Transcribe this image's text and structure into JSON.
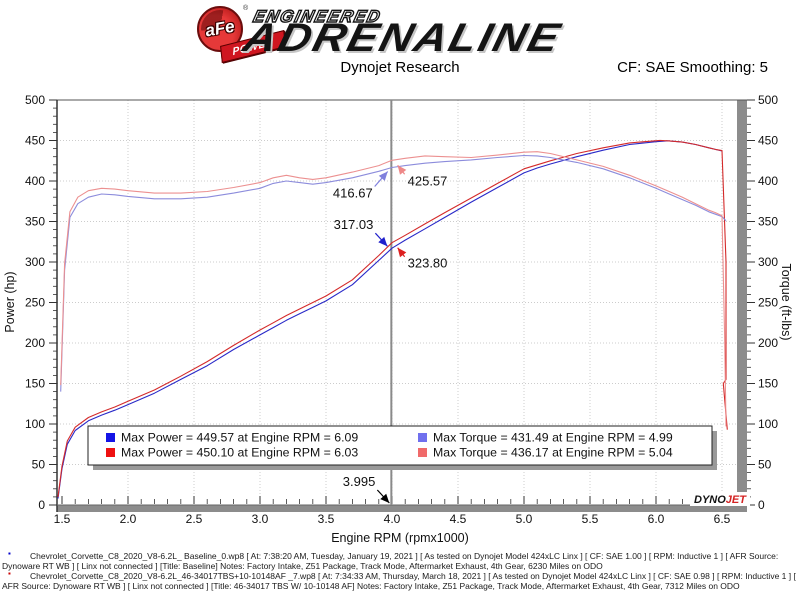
{
  "header": {
    "logo": {
      "afe": "aFe",
      "power": "POWER",
      "registered": "®",
      "engineered": "ENGINEERED",
      "adrenaline": "ADRENALINE"
    },
    "title": "Dynojet Research",
    "smoothing": "CF: SAE Smoothing: 5"
  },
  "chart_data": {
    "type": "line",
    "title": "Dynojet Research",
    "xlabel": "Engine RPM (rpmx1000)",
    "ylabel_left": "Power (hp)",
    "ylabel_right": "Torque (ft-lbs)",
    "xlim": [
      1.45,
      6.65
    ],
    "ylim": [
      0,
      500
    ],
    "x_major_step": 0.5,
    "x_minor_step": 0.1,
    "y_major_step": 50,
    "y_minor_step": 10,
    "grid": "dotted",
    "cursor_rpm": 3.995,
    "series": [
      {
        "name": "Power Baseline",
        "axis": "left",
        "color": "#2929c8",
        "points": [
          [
            1.47,
            8
          ],
          [
            1.5,
            45
          ],
          [
            1.54,
            75
          ],
          [
            1.6,
            92
          ],
          [
            1.7,
            104
          ],
          [
            1.8,
            111
          ],
          [
            1.9,
            117
          ],
          [
            2.0,
            124
          ],
          [
            2.2,
            138
          ],
          [
            2.4,
            155
          ],
          [
            2.6,
            172
          ],
          [
            2.8,
            192
          ],
          [
            3.0,
            210
          ],
          [
            3.1,
            219
          ],
          [
            3.2,
            228
          ],
          [
            3.3,
            236
          ],
          [
            3.4,
            244
          ],
          [
            3.5,
            252
          ],
          [
            3.7,
            272
          ],
          [
            3.9,
            302
          ],
          [
            4.0,
            317
          ],
          [
            4.1,
            327
          ],
          [
            4.25,
            341
          ],
          [
            4.4,
            355
          ],
          [
            4.6,
            374
          ],
          [
            4.8,
            392
          ],
          [
            5.0,
            410
          ],
          [
            5.1,
            416
          ],
          [
            5.2,
            421
          ],
          [
            5.4,
            430
          ],
          [
            5.6,
            438
          ],
          [
            5.8,
            445
          ],
          [
            6.0,
            448.5
          ],
          [
            6.09,
            449.6
          ],
          [
            6.2,
            448
          ],
          [
            6.3,
            445
          ],
          [
            6.4,
            441
          ],
          [
            6.45,
            439
          ],
          [
            6.5,
            437
          ]
        ]
      },
      {
        "name": "Power 46-34017 TBS W/ 10-10148 AF",
        "axis": "left",
        "color": "#d42a2a",
        "points": [
          [
            1.47,
            10
          ],
          [
            1.5,
            48
          ],
          [
            1.54,
            79
          ],
          [
            1.6,
            96
          ],
          [
            1.7,
            108
          ],
          [
            1.8,
            115
          ],
          [
            1.9,
            121
          ],
          [
            2.0,
            128
          ],
          [
            2.2,
            142
          ],
          [
            2.4,
            159
          ],
          [
            2.6,
            177
          ],
          [
            2.8,
            197
          ],
          [
            3.0,
            216
          ],
          [
            3.1,
            225
          ],
          [
            3.2,
            234
          ],
          [
            3.3,
            242
          ],
          [
            3.4,
            250
          ],
          [
            3.5,
            258
          ],
          [
            3.7,
            278
          ],
          [
            3.9,
            308
          ],
          [
            4.0,
            323.8
          ],
          [
            4.1,
            333
          ],
          [
            4.25,
            347
          ],
          [
            4.4,
            361
          ],
          [
            4.6,
            379
          ],
          [
            4.8,
            397
          ],
          [
            5.0,
            415
          ],
          [
            5.1,
            420
          ],
          [
            5.2,
            425
          ],
          [
            5.4,
            434
          ],
          [
            5.6,
            441
          ],
          [
            5.8,
            447
          ],
          [
            6.03,
            450.1
          ],
          [
            6.1,
            449.5
          ],
          [
            6.2,
            448
          ],
          [
            6.3,
            445
          ],
          [
            6.4,
            441
          ],
          [
            6.45,
            439
          ],
          [
            6.5,
            437.5
          ],
          [
            6.53,
            300
          ],
          [
            6.53,
            155
          ],
          [
            6.51,
            150
          ],
          [
            6.54,
            93
          ]
        ]
      },
      {
        "name": "Torque Baseline",
        "axis": "right",
        "color": "#8c8cdc",
        "points": [
          [
            1.49,
            140
          ],
          [
            1.52,
            290
          ],
          [
            1.56,
            355
          ],
          [
            1.62,
            372
          ],
          [
            1.7,
            380
          ],
          [
            1.8,
            384
          ],
          [
            1.9,
            383
          ],
          [
            2.0,
            381
          ],
          [
            2.2,
            378
          ],
          [
            2.4,
            378
          ],
          [
            2.6,
            380
          ],
          [
            2.8,
            385
          ],
          [
            3.0,
            391
          ],
          [
            3.1,
            397
          ],
          [
            3.2,
            400
          ],
          [
            3.3,
            398
          ],
          [
            3.4,
            396
          ],
          [
            3.5,
            398
          ],
          [
            3.7,
            404
          ],
          [
            3.9,
            412
          ],
          [
            4.0,
            416.7
          ],
          [
            4.1,
            419
          ],
          [
            4.25,
            422
          ],
          [
            4.4,
            424
          ],
          [
            4.6,
            426
          ],
          [
            4.8,
            429
          ],
          [
            5.0,
            431.5
          ],
          [
            5.1,
            431
          ],
          [
            5.2,
            429
          ],
          [
            5.4,
            423
          ],
          [
            5.6,
            415
          ],
          [
            5.8,
            404
          ],
          [
            6.0,
            391
          ],
          [
            6.1,
            384
          ],
          [
            6.2,
            377
          ],
          [
            6.3,
            370
          ],
          [
            6.4,
            362
          ],
          [
            6.45,
            359
          ],
          [
            6.5,
            356
          ],
          [
            6.53,
            351
          ]
        ]
      },
      {
        "name": "Torque 46-34017 TBS W/ 10-10148 AF",
        "axis": "right",
        "color": "#ec9090",
        "points": [
          [
            1.49,
            148
          ],
          [
            1.52,
            298
          ],
          [
            1.56,
            362
          ],
          [
            1.62,
            380
          ],
          [
            1.7,
            388
          ],
          [
            1.8,
            391
          ],
          [
            1.9,
            390
          ],
          [
            2.0,
            388
          ],
          [
            2.2,
            385
          ],
          [
            2.4,
            385
          ],
          [
            2.6,
            387
          ],
          [
            2.8,
            392
          ],
          [
            3.0,
            398
          ],
          [
            3.1,
            404
          ],
          [
            3.2,
            407
          ],
          [
            3.3,
            404
          ],
          [
            3.4,
            402
          ],
          [
            3.5,
            404
          ],
          [
            3.7,
            411
          ],
          [
            3.9,
            419
          ],
          [
            4.0,
            425.6
          ],
          [
            4.1,
            428
          ],
          [
            4.25,
            431
          ],
          [
            4.4,
            430
          ],
          [
            4.6,
            429
          ],
          [
            4.8,
            432
          ],
          [
            5.0,
            435.5
          ],
          [
            5.1,
            436.2
          ],
          [
            5.2,
            434
          ],
          [
            5.4,
            426
          ],
          [
            5.6,
            418
          ],
          [
            5.8,
            407
          ],
          [
            6.0,
            394
          ],
          [
            6.1,
            387
          ],
          [
            6.2,
            380
          ],
          [
            6.3,
            372
          ],
          [
            6.4,
            364
          ],
          [
            6.45,
            361
          ],
          [
            6.5,
            357
          ],
          [
            6.52,
            210
          ],
          [
            6.53,
            97
          ]
        ]
      }
    ],
    "annotations": [
      {
        "label": "416.67",
        "color": "#8080dd",
        "rpm": 3.99,
        "value": 416.67,
        "dir": "dl"
      },
      {
        "label": "425.57",
        "color": "#ee8888",
        "rpm": 4.02,
        "value": 425.57,
        "dir": "dr"
      },
      {
        "label": "317.03",
        "color": "#2020cc",
        "rpm": 3.98,
        "value": 317.03,
        "dir": "ul"
      },
      {
        "label": "323.80",
        "color": "#dd2020",
        "rpm": 4.02,
        "value": 323.8,
        "dir": "dr"
      },
      {
        "label": "3.995",
        "color": "#000000",
        "rpm": 3.995,
        "value": 0,
        "dir": "ul"
      }
    ],
    "legend": [
      {
        "color": "#1414e6",
        "label": "Max Power = 449.57 at Engine RPM = 6.09"
      },
      {
        "color": "#ee1111",
        "label": "Max Power = 450.10 at Engine RPM = 6.03"
      },
      {
        "color": "#7070ee",
        "label": "Max Torque = 431.49 at Engine RPM = 4.99"
      },
      {
        "color": "#f06a6a",
        "label": "Max Torque = 436.17 at Engine RPM = 5.04"
      }
    ],
    "legend_position": "bottom-inside",
    "watermark": {
      "dyno": "DYNO",
      "jet": "JET",
      "jet_color": "#d42222"
    }
  },
  "footer": {
    "entries": [
      {
        "bullet_color": "#0000cc",
        "text": "Chevrolet_Corvette_C8_2020_V8-6.2L_ Baseline_0.wp8 [ At: 7:38:20 AM, Tuesday, January 19, 2021 ] [ As tested on Dynojet Model 424xLC Linx ] [ CF: SAE 1.00 ] [ RPM: Inductive 1 ] [ AFR Source: Dynoware RT WB ] [ Linx not connected ] [Title: Baseline]  Notes: Factory Intake, Z51 Package, Track Mode, Aftermarket Exhaust, 4th Gear, 6230 Miles on ODO"
      },
      {
        "bullet_color": "#cc0000",
        "text": "Chevrolet_Corvette_C8_2020_V8-6.2L_46-34017TBS+10-10148AF _7.wp8 [ At: 7:34:33 AM, Thursday, March 18, 2021 ] [ As tested on Dynojet Model 424xLC Linx ] [ CF: SAE 0.98 ] [ RPM: Inductive 1 ] [ AFR Source: Dynoware RT WB ] [ Linx not connected ] [Title: 46-34017 TBS W/ 10-10148 AF]  Notes: Factory Intake, Z51 Package, Track Mode, Aftermarket Exhaust, 4th Gear, 7312 Miles on ODO"
      }
    ]
  }
}
